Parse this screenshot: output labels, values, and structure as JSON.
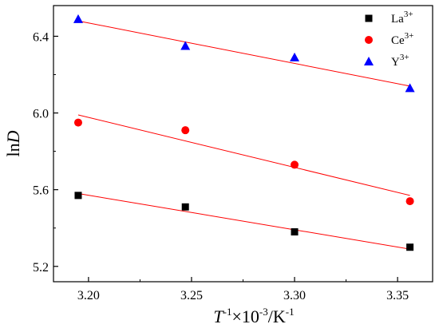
{
  "chart_data": {
    "type": "scatter",
    "title": "",
    "xlabel": {
      "var": "T",
      "sup1": "-1",
      "mid": "×10",
      "sup2": "-3",
      "mid2": "/K",
      "sup3": "-1"
    },
    "ylabel": {
      "pre": "ln",
      "var": "D"
    },
    "xlim": [
      3.183,
      3.367
    ],
    "ylim": [
      5.12,
      6.56
    ],
    "xticks": [
      3.2,
      3.25,
      3.3,
      3.35
    ],
    "xtick_labels": [
      "3.20",
      "3.25",
      "3.30",
      "3.35"
    ],
    "yticks": [
      5.2,
      5.6,
      6.0,
      6.4
    ],
    "ytick_labels": [
      "5.2",
      "5.6",
      "6.0",
      "6.4"
    ],
    "grid": false,
    "legend_position": "top-right",
    "fit_line_color": "#ff0000",
    "series": [
      {
        "label": "La",
        "sup": "3+",
        "marker": "square",
        "color": "#000000",
        "x": [
          3.195,
          3.247,
          3.3,
          3.356
        ],
        "y": [
          5.57,
          5.51,
          5.38,
          5.3
        ],
        "fit_x": [
          3.195,
          3.356
        ],
        "fit_y": [
          5.58,
          5.29
        ]
      },
      {
        "label": "Ce",
        "sup": "3+",
        "marker": "circle",
        "color": "#ff0000",
        "x": [
          3.195,
          3.247,
          3.3,
          3.356
        ],
        "y": [
          5.95,
          5.91,
          5.73,
          5.54
        ],
        "fit_x": [
          3.195,
          3.356
        ],
        "fit_y": [
          5.99,
          5.57
        ]
      },
      {
        "label": "Y",
        "sup": "3+",
        "marker": "triangle",
        "color": "#0000ff",
        "x": [
          3.195,
          3.247,
          3.3,
          3.356
        ],
        "y": [
          6.49,
          6.35,
          6.29,
          6.13
        ],
        "fit_x": [
          3.195,
          3.356
        ],
        "fit_y": [
          6.48,
          6.14
        ]
      }
    ]
  }
}
